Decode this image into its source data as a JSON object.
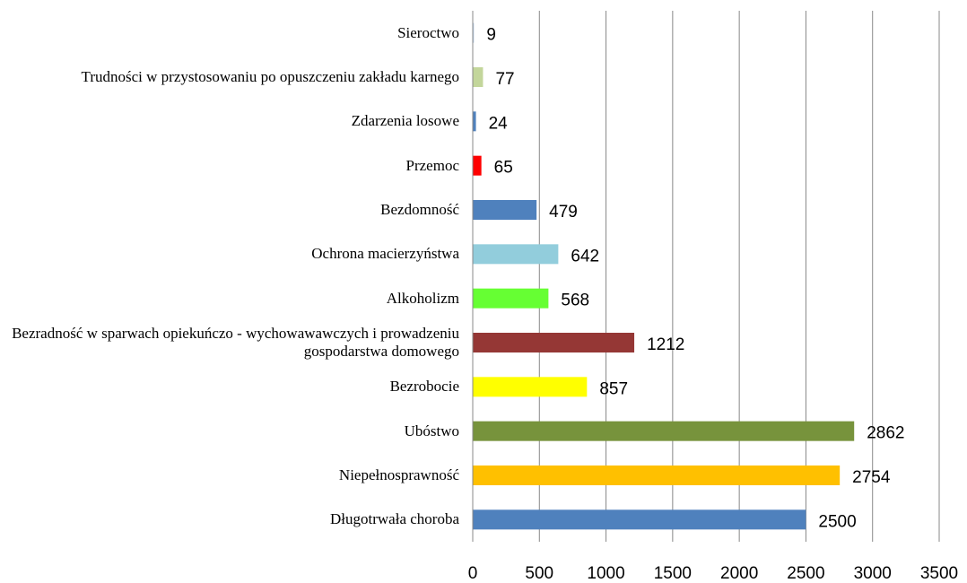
{
  "chart_data": {
    "type": "barh",
    "categories": [
      "Sieroctwo",
      "Trudności w przystosowaniu po opuszczeniu zakładu karnego",
      "Zdarzenia losowe",
      "Przemoc",
      "Bezdomność",
      "Ochrona macierzyństwa",
      "Alkoholizm",
      "Bezradność w sparwach opiekuńczo - wychowawawczych i prowadzeniu gospodarstwa domowego",
      "Bezrobocie",
      "Ubóstwo",
      "Niepełnosprawność",
      "Długotrwała choroba"
    ],
    "values": [
      9,
      77,
      24,
      65,
      479,
      642,
      568,
      1212,
      857,
      2862,
      2754,
      2500
    ],
    "colors": [
      "#b9cde5",
      "#c3d69b",
      "#4f81bd",
      "#ff0000",
      "#4f81bd",
      "#92cddc",
      "#66ff33",
      "#953735",
      "#ffff00",
      "#77933c",
      "#ffc000",
      "#4f81bd"
    ],
    "xlim": [
      0,
      3500
    ],
    "xticks": [
      0,
      500,
      1000,
      1500,
      2000,
      2500,
      3000,
      3500
    ],
    "grid": true
  }
}
